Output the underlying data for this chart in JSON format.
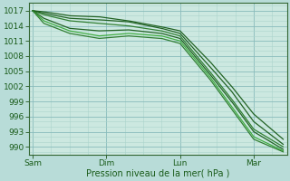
{
  "xlabel": "Pression niveau de la mer( hPa )",
  "x_ticks": [
    "Sam",
    "Dim",
    "Lun",
    "Mar"
  ],
  "x_tick_positions": [
    0,
    1,
    2,
    3
  ],
  "ylim": [
    988.5,
    1018.5
  ],
  "xlim": [
    -0.05,
    3.45
  ],
  "y_ticks": [
    990,
    993,
    996,
    999,
    1002,
    1005,
    1008,
    1011,
    1014,
    1017
  ],
  "bg_color": "#cce8e0",
  "grid_minor_color": "#aad4cc",
  "grid_major_color": "#88bbbb",
  "line_color_dark": "#1a5c1a",
  "line_color_mid": "#2a7a2a",
  "line_color_light": "#3d9e3d",
  "fig_bg": "#b8dcd8",
  "lines": [
    {
      "pts_x": [
        0,
        0.15,
        0.5,
        0.9,
        1.3,
        1.75,
        2.0,
        2.4,
        2.7,
        3.0,
        3.4
      ],
      "pts_y": [
        1017,
        1016.5,
        1015.5,
        1015.2,
        1014.8,
        1013.5,
        1012.5,
        1006,
        1001,
        995,
        990.5
      ]
    },
    {
      "pts_x": [
        0,
        0.15,
        0.5,
        0.9,
        1.3,
        1.75,
        2.0,
        2.4,
        2.7,
        3.0,
        3.4
      ],
      "pts_y": [
        1017,
        1016.2,
        1015.0,
        1014.5,
        1014.0,
        1013.0,
        1012.0,
        1005,
        999.5,
        993.5,
        990.0
      ]
    },
    {
      "pts_x": [
        0,
        0.15,
        0.5,
        0.9,
        1.3,
        1.75,
        2.0,
        2.4,
        2.7,
        3.0,
        3.4
      ],
      "pts_y": [
        1017,
        1015.5,
        1013.5,
        1013.0,
        1013.2,
        1012.5,
        1011.5,
        1004.5,
        999,
        993,
        989.5
      ]
    },
    {
      "pts_x": [
        0,
        0.15,
        0.5,
        0.9,
        1.3,
        1.75,
        2.0,
        2.4,
        2.7,
        3.0,
        3.4
      ],
      "pts_y": [
        1017,
        1015.0,
        1013.0,
        1012.0,
        1012.5,
        1012.0,
        1011.0,
        1004.0,
        998,
        992,
        989.2
      ]
    },
    {
      "pts_x": [
        0,
        0.15,
        0.5,
        0.9,
        1.3,
        1.75,
        2.0,
        2.4,
        2.7,
        3.0,
        3.4
      ],
      "pts_y": [
        1017,
        1016.8,
        1016.0,
        1015.8,
        1015.0,
        1013.8,
        1013.0,
        1007,
        1002,
        996.5,
        991.5
      ]
    },
    {
      "pts_x": [
        0,
        0.15,
        0.5,
        0.9,
        1.3,
        1.75,
        2.0,
        2.4,
        2.7,
        3.0,
        3.4
      ],
      "pts_y": [
        1017,
        1014.5,
        1012.5,
        1011.5,
        1012.0,
        1011.5,
        1010.5,
        1003.5,
        997.5,
        991.5,
        989.0
      ]
    }
  ],
  "line_colors": [
    "#1a5c1a",
    "#2a7a2a",
    "#1a5c1a",
    "#3aaa3a",
    "#1a5c1a",
    "#2a7a2a"
  ]
}
